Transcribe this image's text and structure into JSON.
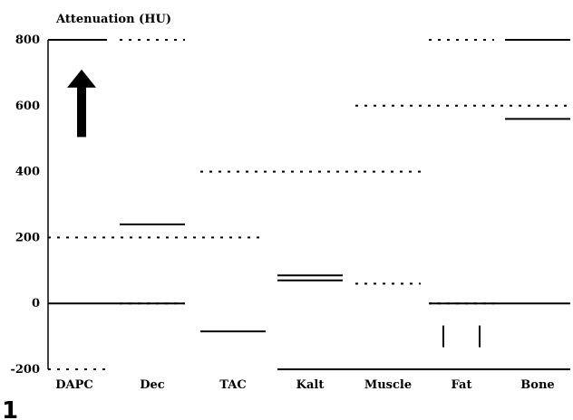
{
  "chart_data": {
    "type": "line",
    "title": "Attenuation (HU)",
    "panel_label": "1",
    "ylabel": "Attenuation (HU)",
    "xlabel": "",
    "ylim": [
      -200,
      800
    ],
    "yticks": [
      -200,
      0,
      200,
      400,
      600,
      800
    ],
    "categories": [
      "DAPC",
      "Dec",
      "TAC",
      "Kalt",
      "Muscle",
      "Fat",
      "Bone"
    ],
    "grid": false,
    "legend": "none",
    "annotations": [
      {
        "kind": "arrow",
        "direction": "up",
        "category": "DAPC",
        "from_value": 505,
        "to_value": 710
      }
    ],
    "series": [
      {
        "style": "solid",
        "segments": [
          {
            "x": [
              "DAPC",
              "DAPC"
            ],
            "y": [
              800,
              800
            ]
          },
          {
            "x": [
              "Bone",
              "Bone"
            ],
            "y": [
              800,
              800
            ]
          },
          {
            "x": [
              "Bone",
              "Bone"
            ],
            "y": [
              560,
              560
            ]
          },
          {
            "x": [
              "Dec",
              "Dec"
            ],
            "y": [
              240,
              240
            ]
          },
          {
            "x": [
              "DAPC",
              "Dec"
            ],
            "y": [
              0,
              0
            ]
          },
          {
            "x": [
              "TAC",
              "TAC"
            ],
            "y": [
              -85,
              -85
            ]
          },
          {
            "x": [
              "Kalt",
              "Kalt"
            ],
            "y": [
              85,
              85
            ]
          },
          {
            "x": [
              "Kalt",
              "Kalt"
            ],
            "y": [
              70,
              70
            ]
          },
          {
            "x": [
              "Fat",
              "Bone"
            ],
            "y": [
              0,
              0
            ]
          },
          {
            "x": [
              "Kalt",
              "Bone"
            ],
            "y": [
              -200,
              -200
            ]
          }
        ]
      },
      {
        "style": "dotted",
        "segments": [
          {
            "x": [
              "DAPC",
              "TAC"
            ],
            "y": [
              200,
              200
            ]
          },
          {
            "x": [
              "TAC",
              "Muscle"
            ],
            "y": [
              400,
              400
            ]
          },
          {
            "x": [
              "Muscle",
              "Bone"
            ],
            "y": [
              600,
              600
            ]
          },
          {
            "x": [
              "Dec",
              "Dec"
            ],
            "y": [
              800,
              800
            ]
          },
          {
            "x": [
              "Dec",
              "Dec"
            ],
            "y": [
              0,
              0
            ]
          },
          {
            "x": [
              "Muscle",
              "Muscle"
            ],
            "y": [
              60,
              60
            ]
          },
          {
            "x": [
              "Fat",
              "Fat"
            ],
            "y": [
              0,
              0
            ]
          },
          {
            "x": [
              "Fat",
              "Fat"
            ],
            "y": [
              800,
              800
            ]
          },
          {
            "x": [
              "DAPC",
              "DAPC"
            ],
            "y": [
              -200,
              -200
            ]
          },
          {
            "x": [
              "Kalt",
              "Kalt"
            ],
            "y": [
              -200,
              -200
            ]
          }
        ]
      },
      {
        "style": "tick",
        "segments": [
          {
            "x": [
              "Fat",
              "Fat"
            ],
            "y": [
              -100,
              -100
            ]
          }
        ]
      }
    ]
  }
}
